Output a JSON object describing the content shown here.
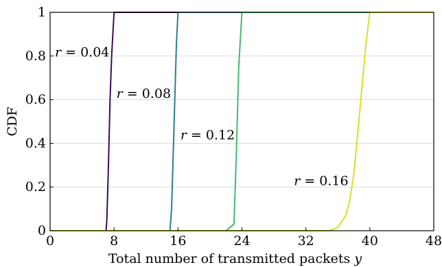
{
  "chart_data": {
    "type": "line",
    "xlabel": "Total number of transmitted packets y",
    "xlabel_main": "Total number of transmitted packets ",
    "xlabel_var": "y",
    "ylabel": "CDF",
    "xlim": [
      0,
      48
    ],
    "ylim": [
      0,
      1
    ],
    "xticks": [
      0,
      8,
      16,
      24,
      32,
      40,
      48
    ],
    "yticks": [
      0,
      0.2,
      0.4,
      0.6,
      0.8,
      1
    ],
    "ytick_labels": [
      "0",
      "0.2",
      "0.4",
      "0.6",
      "0.8",
      "1"
    ],
    "grid": "horizontal",
    "series": [
      {
        "name": "r = 0.04",
        "color": "#3b0a59",
        "x": [
          0,
          7,
          7.1,
          7.3,
          7.5,
          7.7,
          8,
          48
        ],
        "y": [
          0,
          0,
          0.05,
          0.3,
          0.6,
          0.8,
          1,
          1
        ]
      },
      {
        "name": "r = 0.08",
        "color": "#2a7f8e",
        "x": [
          0,
          15,
          15.2,
          15.4,
          15.6,
          15.8,
          16,
          48
        ],
        "y": [
          0,
          0,
          0.1,
          0.35,
          0.6,
          0.85,
          1,
          1
        ]
      },
      {
        "name": "r = 0.12",
        "color": "#3dbb6e",
        "x": [
          0,
          22,
          23,
          23.3,
          23.6,
          24,
          48
        ],
        "y": [
          0,
          0,
          0.03,
          0.35,
          0.75,
          1,
          1
        ]
      },
      {
        "name": "r = 0.16",
        "color": "#d6e21f",
        "x": [
          0,
          35,
          36,
          37,
          37.5,
          38,
          38.5,
          39,
          39.5,
          40,
          48
        ],
        "y": [
          0,
          0,
          0.015,
          0.07,
          0.14,
          0.26,
          0.45,
          0.65,
          0.85,
          1,
          1
        ]
      }
    ],
    "annotations": [
      {
        "text_var": "r",
        "text_rest": " = 0.04",
        "x": 0.6,
        "y": 0.82
      },
      {
        "text_var": "r",
        "text_rest": " = 0.08",
        "x": 8.3,
        "y": 0.63
      },
      {
        "text_var": "r",
        "text_rest": " = 0.12",
        "x": 16.3,
        "y": 0.44
      },
      {
        "text_var": "r",
        "text_rest": " = 0.16",
        "x": 30.5,
        "y": 0.23
      }
    ]
  }
}
